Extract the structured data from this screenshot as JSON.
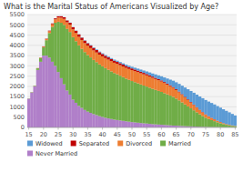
{
  "chart_data": {
    "type": "bar",
    "stacked": true,
    "grid": true,
    "legend": "bottom",
    "title": "What is the Marital Status of Americans Visualized by Age?",
    "x": [
      15,
      16,
      17,
      18,
      19,
      20,
      21,
      22,
      23,
      24,
      25,
      26,
      27,
      28,
      29,
      30,
      31,
      32,
      33,
      34,
      35,
      36,
      37,
      38,
      39,
      40,
      41,
      42,
      43,
      44,
      45,
      46,
      47,
      48,
      49,
      50,
      51,
      52,
      53,
      54,
      55,
      56,
      57,
      58,
      59,
      60,
      61,
      62,
      63,
      64,
      65,
      66,
      67,
      68,
      69,
      70,
      71,
      72,
      73,
      74,
      75,
      76,
      77,
      78,
      79,
      80,
      81,
      82,
      83,
      84,
      85
    ],
    "xlim": [
      14.5,
      85.5
    ],
    "xticks": [
      15,
      20,
      25,
      30,
      35,
      40,
      45,
      50,
      55,
      60,
      65,
      70,
      75,
      80,
      85
    ],
    "ylim": [
      0,
      5500
    ],
    "yticks": [
      0,
      500,
      1000,
      1500,
      2000,
      2500,
      3000,
      3500,
      4000,
      4500,
      5000,
      5500
    ],
    "series": [
      {
        "name": "Never Married",
        "color": "#b07fc9",
        "values": [
          1400,
          1700,
          2000,
          2800,
          3200,
          3500,
          3500,
          3400,
          3200,
          3000,
          2700,
          2400,
          2100,
          1800,
          1600,
          1350,
          1200,
          1050,
          950,
          850,
          770,
          710,
          650,
          600,
          550,
          510,
          470,
          440,
          410,
          380,
          360,
          340,
          320,
          300,
          280,
          260,
          245,
          230,
          215,
          200,
          190,
          175,
          160,
          150,
          140,
          130,
          120,
          110,
          100,
          90,
          85,
          78,
          70,
          62,
          56,
          50,
          44,
          38,
          33,
          28,
          24,
          20,
          17,
          15,
          12,
          10,
          8,
          7,
          6,
          5,
          4
        ]
      },
      {
        "name": "Married",
        "color": "#70ad47",
        "values": [
          10,
          15,
          25,
          80,
          180,
          400,
          750,
          1200,
          1700,
          2100,
          2450,
          2700,
          2900,
          3000,
          3050,
          3050,
          3000,
          2950,
          2880,
          2820,
          2760,
          2700,
          2640,
          2580,
          2520,
          2470,
          2420,
          2370,
          2320,
          2270,
          2230,
          2180,
          2130,
          2080,
          2040,
          2000,
          1960,
          1920,
          1880,
          1840,
          1800,
          1760,
          1720,
          1680,
          1640,
          1600,
          1550,
          1500,
          1450,
          1400,
          1320,
          1240,
          1150,
          1060,
          970,
          880,
          790,
          700,
          610,
          530,
          450,
          390,
          340,
          290,
          240,
          195,
          155,
          120,
          95,
          70,
          55
        ]
      },
      {
        "name": "Divorced",
        "color": "#ed7d31",
        "values": [
          2,
          3,
          4,
          8,
          18,
          35,
          55,
          90,
          130,
          170,
          210,
          250,
          290,
          325,
          355,
          380,
          400,
          418,
          430,
          440,
          450,
          458,
          465,
          472,
          478,
          485,
          490,
          495,
          500,
          505,
          510,
          515,
          520,
          525,
          530,
          535,
          540,
          545,
          548,
          550,
          548,
          544,
          538,
          530,
          520,
          508,
          494,
          478,
          460,
          440,
          418,
          394,
          368,
          340,
          312,
          284,
          256,
          226,
          198,
          172,
          148,
          124,
          102,
          84,
          68,
          54,
          42,
          33,
          25,
          19,
          14
        ]
      },
      {
        "name": "Separated",
        "color": "#c00000",
        "values": [
          1,
          2,
          2,
          4,
          7,
          14,
          18,
          26,
          36,
          46,
          56,
          67,
          77,
          86,
          95,
          103,
          108,
          112,
          116,
          119,
          120,
          120,
          119,
          118,
          116,
          113,
          110,
          107,
          104,
          100,
          97,
          93,
          90,
          87,
          84,
          80,
          77,
          74,
          71,
          68,
          65,
          62,
          59,
          57,
          54,
          51,
          48,
          46,
          43,
          41,
          38,
          36,
          34,
          31,
          29,
          27,
          25,
          22,
          20,
          18,
          16,
          14,
          12,
          10,
          8,
          7,
          5,
          4,
          3,
          3,
          2
        ]
      },
      {
        "name": "Widowed",
        "color": "#5b9bd5",
        "values": [
          1,
          1,
          1,
          2,
          2,
          3,
          3,
          3,
          3,
          4,
          4,
          5,
          6,
          7,
          8,
          10,
          12,
          14,
          16,
          18,
          20,
          22,
          25,
          28,
          31,
          34,
          37,
          40,
          44,
          48,
          52,
          57,
          62,
          68,
          74,
          81,
          88,
          96,
          105,
          115,
          126,
          138,
          151,
          166,
          183,
          202,
          224,
          248,
          275,
          305,
          338,
          374,
          412,
          452,
          493,
          534,
          574,
          612,
          646,
          675,
          698,
          712,
          720,
          720,
          712,
          697,
          674,
          644,
          606,
          560,
          508
        ]
      }
    ]
  }
}
